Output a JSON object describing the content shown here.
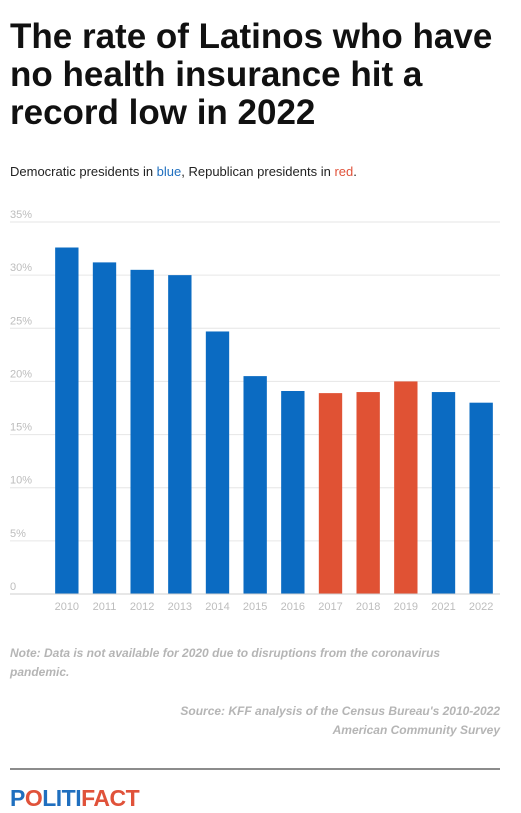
{
  "header": {
    "title": "The rate of Latinos who have no health insurance hit a record low in 2022",
    "subtitle_part1": "Democratic presidents in ",
    "subtitle_blue": "blue",
    "subtitle_part2": ", Republican presidents in ",
    "subtitle_red": "red",
    "subtitle_part3": "."
  },
  "colors": {
    "democratic": "#0b6bc2",
    "republican": "#e05234",
    "grid": "#e6e6e6",
    "tick_text": "#bdbdbd"
  },
  "chart_data": {
    "type": "bar",
    "title": "The rate of Latinos who have no health insurance hit a record low in 2022",
    "xlabel": "",
    "ylabel": "",
    "categories": [
      "2010",
      "2011",
      "2012",
      "2013",
      "2014",
      "2015",
      "2016",
      "2017",
      "2018",
      "2019",
      "2021",
      "2022"
    ],
    "values": [
      32.6,
      31.2,
      30.5,
      30.0,
      24.7,
      20.5,
      19.1,
      18.9,
      19.0,
      20.0,
      19.0,
      18.0
    ],
    "party": [
      "D",
      "D",
      "D",
      "D",
      "D",
      "D",
      "D",
      "R",
      "R",
      "R",
      "D",
      "D"
    ],
    "ylim": [
      0,
      35
    ],
    "y_ticks": [
      0,
      5,
      10,
      15,
      20,
      25,
      30,
      35
    ],
    "y_tick_labels": [
      "0",
      "5%",
      "10%",
      "15%",
      "20%",
      "25%",
      "30%",
      "35%"
    ],
    "grid": true,
    "legend": "none"
  },
  "footer": {
    "note": "Note: Data is not available for 2020 due to disruptions from the coronavirus pandemic.",
    "source_line1": "Source: KFF analysis of the Census Bureau's 2010-2022",
    "source_line2": "American Community Survey",
    "logo_part1": "P",
    "logo_part2": "O",
    "logo_part3": "LITI",
    "logo_part4": "FACT"
  }
}
